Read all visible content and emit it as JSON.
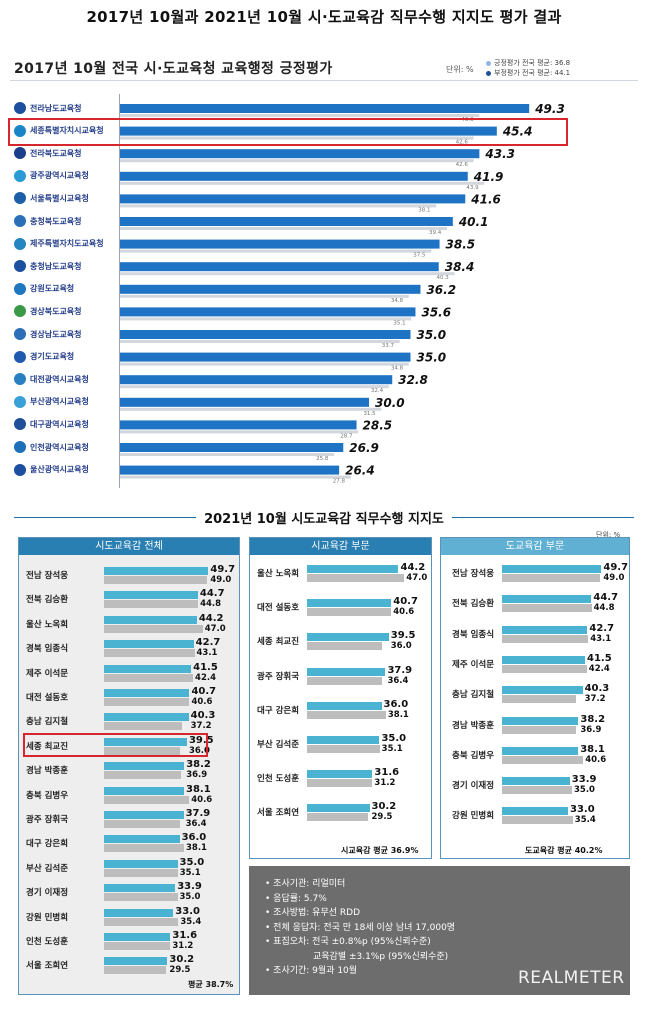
{
  "page_title": "2017년 10월과 2021년 10월 시·도교육감 직무수행 지지도 평가 결과",
  "colors": {
    "bar_2017": "#1f73c4",
    "bar_2021": "#4bb3d2",
    "bar_prev": "#bdbdbd",
    "highlight": "#d6262e",
    "panel_header": "#2a7fb2",
    "panel_header_light": "#5fb0d3"
  },
  "chart_data": [
    {
      "type": "bar",
      "orientation": "horizontal",
      "title": "2017년 10월 전국 시·도교육청 교육행정 긍정평가",
      "unit": "단위: %",
      "legend": [
        "긍정평가 전국 평균: 36.8",
        "부정평가 전국 평균: 44.1"
      ],
      "categories": [
        "전라남도교육청",
        "세종특별자치시교육청",
        "전라북도교육청",
        "광주광역시교육청",
        "서울특별시교육청",
        "충청북도교육청",
        "제주특별자치도교육청",
        "충청남도교육청",
        "강원도교육청",
        "경상북도교육청",
        "경상남도교육청",
        "경기도교육청",
        "대전광역시교육청",
        "부산광역시교육청",
        "대구광역시교육청",
        "인천광역시교육청",
        "울산광역시교육청"
      ],
      "series": [
        {
          "name": "긍정평가",
          "values": [
            49.3,
            45.4,
            43.3,
            41.9,
            41.6,
            40.1,
            38.5,
            38.4,
            36.2,
            35.6,
            35.0,
            35.0,
            32.8,
            30.0,
            28.5,
            26.9,
            26.4
          ]
        },
        {
          "name": "부정평가",
          "values": [
            43.3,
            42.6,
            42.6,
            43.9,
            38.1,
            39.4,
            37.5,
            40.3,
            34.8,
            35.1,
            33.7,
            34.8,
            32.4,
            31.5,
            28.7,
            25.8,
            27.8
          ]
        }
      ],
      "highlight": "세종특별자치시교육청"
    },
    {
      "type": "bar",
      "orientation": "horizontal",
      "title": "2021년 10월 시도교육감 직무수행 지지도",
      "unit": "단위: %",
      "panels": [
        {
          "name": "시도교육감 전체",
          "categories": [
            "전남 장석웅",
            "전북 김승환",
            "울산 노옥희",
            "경북 임종식",
            "제주 이석문",
            "대전 설동호",
            "충남 김지철",
            "세종 최교진",
            "경남 박종훈",
            "충북 김병우",
            "광주 장휘국",
            "대구 강은희",
            "부산 김석준",
            "경기 이재정",
            "강원 민병희",
            "인천 도성훈",
            "서울 조희연"
          ],
          "current": [
            49.7,
            44.7,
            44.2,
            42.7,
            41.5,
            40.7,
            40.3,
            39.5,
            38.2,
            38.1,
            37.9,
            36.0,
            35.0,
            33.9,
            33.0,
            31.6,
            30.2
          ],
          "previous": [
            49.0,
            44.8,
            47.0,
            43.1,
            42.4,
            40.6,
            37.2,
            36.0,
            36.9,
            40.6,
            36.4,
            38.1,
            35.1,
            35.0,
            35.4,
            31.2,
            29.5
          ],
          "average": "평균 38.7%",
          "highlight": "세종 최교진"
        },
        {
          "name": "시교육감 부문",
          "categories": [
            "울산 노옥희",
            "대전 설동호",
            "세종 최교진",
            "광주 장휘국",
            "대구 강은희",
            "부산 김석준",
            "인천 도성훈",
            "서울 조희연"
          ],
          "current": [
            44.2,
            40.7,
            39.5,
            37.9,
            36.0,
            35.0,
            31.6,
            30.2
          ],
          "previous": [
            47.0,
            40.6,
            36.0,
            36.4,
            38.1,
            35.1,
            31.2,
            29.5
          ],
          "average": "시교육감 평균 36.9%"
        },
        {
          "name": "도교육감 부문",
          "categories": [
            "전남 장석웅",
            "전북 김승환",
            "경북 임종식",
            "제주 이석문",
            "충남 김지철",
            "경남 박종훈",
            "충북 김병우",
            "경기 이재정",
            "강원 민병희"
          ],
          "current": [
            49.7,
            44.7,
            42.7,
            41.5,
            40.3,
            38.2,
            38.1,
            33.9,
            33.0
          ],
          "previous": [
            49.0,
            44.8,
            43.1,
            42.4,
            37.2,
            36.9,
            40.6,
            35.0,
            35.4
          ],
          "average": "도교육감 평균 40.2%"
        }
      ]
    }
  ],
  "survey_info": [
    "• 조사기관: 리얼미터",
    "• 응답률: 5.7%",
    "• 조사방법: 유무선 RDD",
    "• 전체 응답자: 전국 만 18세 이상 남녀 17,000명",
    "• 표집오차: 전국 ±0.8%p (95%신뢰수준)",
    "교육감별 ±3.1%p (95%신뢰수준)",
    "• 조사기간: 9월과 10월"
  ],
  "brand": "REALMETER"
}
